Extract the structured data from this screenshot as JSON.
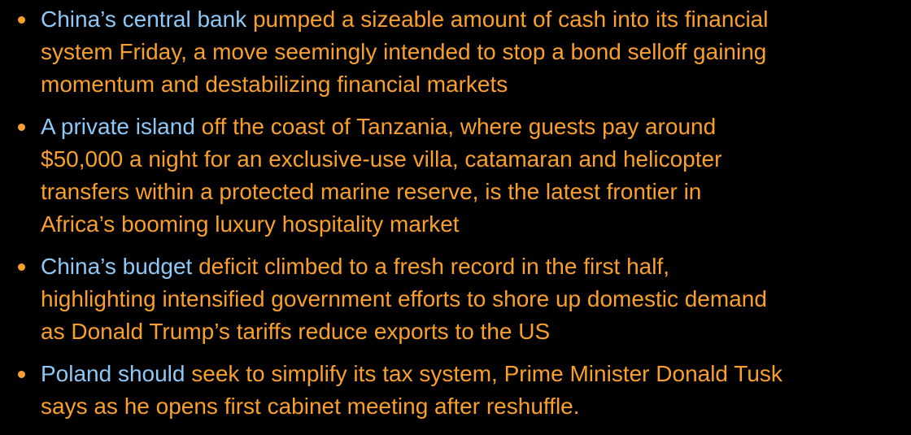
{
  "items": [
    {
      "link": "China’s central bank",
      "lines": [
        " pumped a sizeable amount of cash into its financial",
        "system Friday, a move seemingly intended to stop a bond selloff gaining",
        "momentum and destabilizing financial markets"
      ]
    },
    {
      "link": "A private island",
      "lines": [
        " off the coast of Tanzania, where guests pay around",
        "$50,000 a night for an exclusive-use villa, catamaran and helicopter",
        "transfers within a protected marine reserve, is the latest frontier in",
        "Africa’s booming luxury hospitality market"
      ]
    },
    {
      "link": "China’s budget",
      "lines": [
        " deficit climbed to a fresh record in the first half,",
        "highlighting intensified government efforts to shore up domestic demand",
        "as Donald Trump’s tariffs reduce exports to the US"
      ]
    },
    {
      "link": "Poland should",
      "lines": [
        " seek to simplify its tax system, Prime Minister Donald Tusk",
        "says as he opens first cabinet meeting after reshuffle."
      ]
    }
  ]
}
